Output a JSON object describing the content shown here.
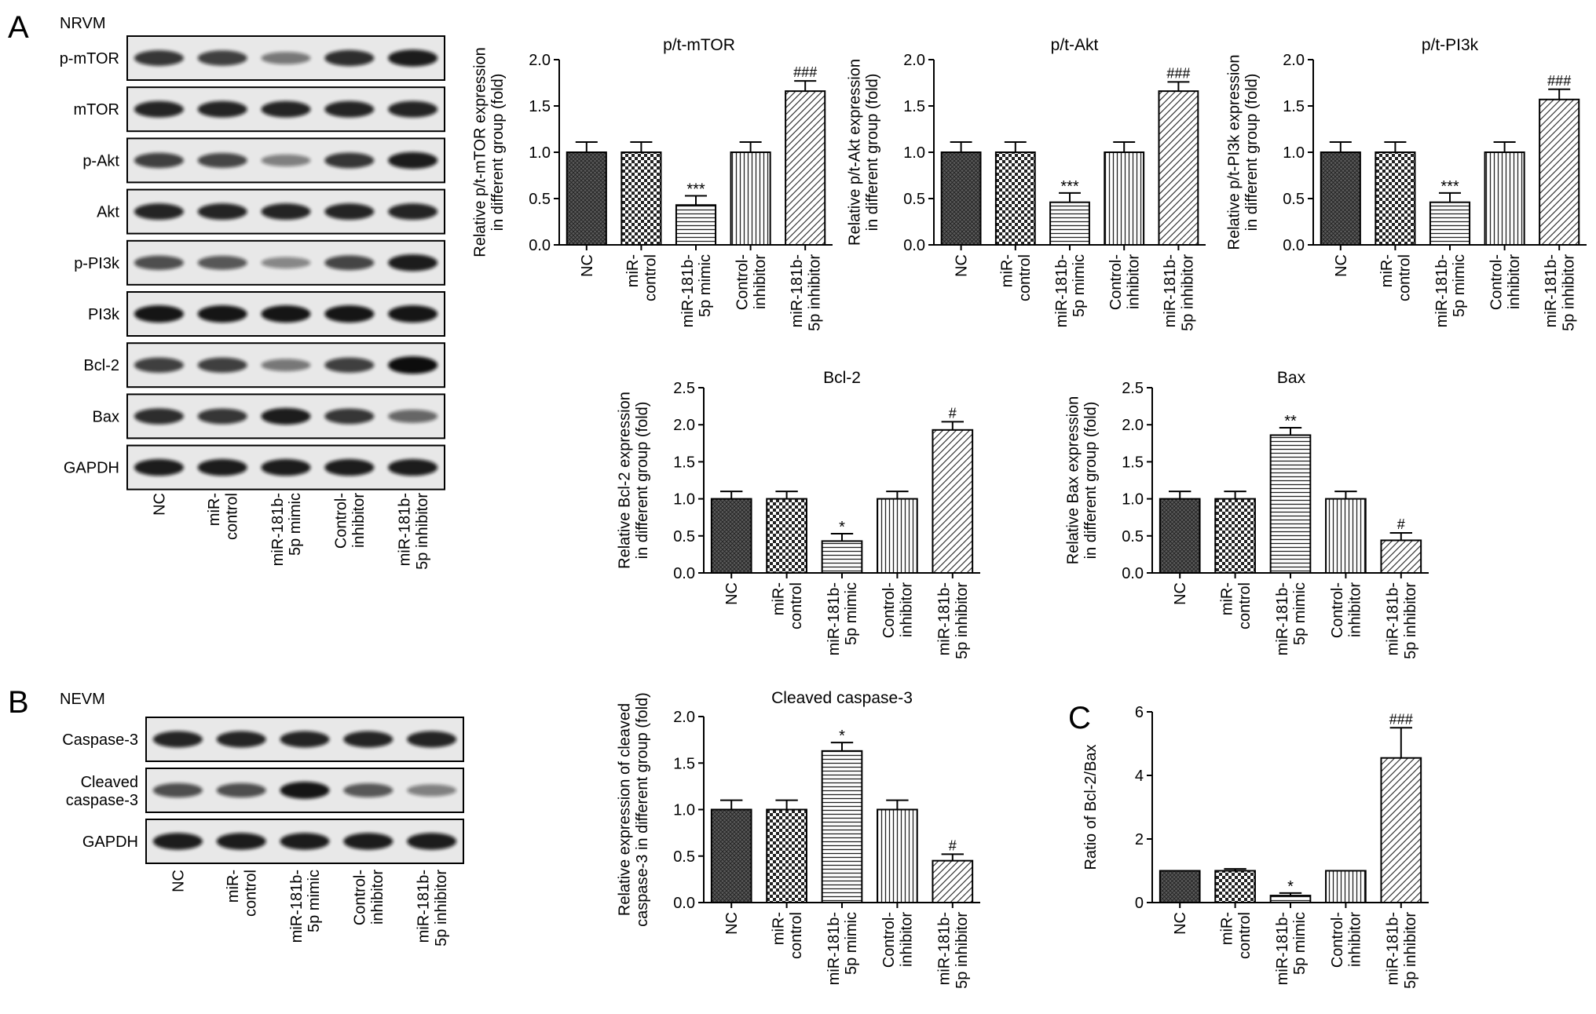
{
  "panels": {
    "A": "A",
    "B": "B",
    "C": "C"
  },
  "blot_a": {
    "cell_label": "NRVM",
    "rows": [
      "p-mTOR",
      "mTOR",
      "p-Akt",
      "Akt",
      "p-PI3k",
      "PI3k",
      "Bcl-2",
      "Bax",
      "GAPDH"
    ],
    "band_intensity": [
      [
        0.75,
        0.7,
        0.35,
        0.8,
        0.9
      ],
      [
        0.85,
        0.85,
        0.85,
        0.85,
        0.85
      ],
      [
        0.7,
        0.65,
        0.3,
        0.75,
        0.9
      ],
      [
        0.85,
        0.85,
        0.85,
        0.85,
        0.85
      ],
      [
        0.6,
        0.55,
        0.25,
        0.65,
        0.9
      ],
      [
        0.95,
        0.95,
        0.95,
        0.95,
        0.95
      ],
      [
        0.7,
        0.7,
        0.35,
        0.7,
        1.0
      ],
      [
        0.8,
        0.75,
        0.9,
        0.75,
        0.45
      ],
      [
        0.9,
        0.9,
        0.9,
        0.9,
        0.9
      ]
    ]
  },
  "blot_b": {
    "cell_label": "NEVM",
    "rows": [
      "Caspase-3",
      "Cleaved\ncaspase-3",
      "GAPDH"
    ],
    "band_intensity": [
      [
        0.85,
        0.85,
        0.85,
        0.85,
        0.85
      ],
      [
        0.6,
        0.6,
        0.95,
        0.55,
        0.3
      ],
      [
        0.9,
        0.9,
        0.9,
        0.9,
        0.9
      ]
    ]
  },
  "groups": [
    "NC",
    "miR-\ncontrol",
    "miR-181b-\n5p mimic",
    "Control-\ninhibitor",
    "miR-181b-\n5p inhibitor"
  ],
  "chart_data": [
    {
      "type": "bar",
      "title": "p/t-mTOR",
      "ylabel": "Relative p/t-mTOR expression\nin different group (fold)",
      "categories": [
        "NC",
        "miR-control",
        "miR-181b-5p mimic",
        "Control-inhibitor",
        "miR-181b-5p inhibitor"
      ],
      "values": [
        1.0,
        1.0,
        0.43,
        1.0,
        1.66
      ],
      "errors": [
        0.11,
        0.11,
        0.1,
        0.11,
        0.11
      ],
      "annotations": [
        "",
        "",
        "***",
        "",
        "###"
      ],
      "ylim": [
        0,
        2.0
      ],
      "yticks": [
        "0.0",
        "0.5",
        "1.0",
        "1.5",
        "2.0"
      ]
    },
    {
      "type": "bar",
      "title": "p/t-Akt",
      "ylabel": "Relative p/t-Akt expression\nin different group (fold)",
      "categories": [
        "NC",
        "miR-control",
        "miR-181b-5p mimic",
        "Control-inhibitor",
        "miR-181b-5p inhibitor"
      ],
      "values": [
        1.0,
        1.0,
        0.46,
        1.0,
        1.66
      ],
      "errors": [
        0.11,
        0.11,
        0.1,
        0.11,
        0.1
      ],
      "annotations": [
        "",
        "",
        "***",
        "",
        "###"
      ],
      "ylim": [
        0,
        2.0
      ],
      "yticks": [
        "0.0",
        "0.5",
        "1.0",
        "1.5",
        "2.0"
      ]
    },
    {
      "type": "bar",
      "title": "p/t-PI3k",
      "ylabel": "Relative p/t-PI3k expression\nin different group (fold)",
      "categories": [
        "NC",
        "miR-control",
        "miR-181b-5p mimic",
        "Control-inhibitor",
        "miR-181b-5p inhibitor"
      ],
      "values": [
        1.0,
        1.0,
        0.46,
        1.0,
        1.57
      ],
      "errors": [
        0.11,
        0.11,
        0.1,
        0.11,
        0.11
      ],
      "annotations": [
        "",
        "",
        "***",
        "",
        "###"
      ],
      "ylim": [
        0,
        2.0
      ],
      "yticks": [
        "0.0",
        "0.5",
        "1.0",
        "1.5",
        "2.0"
      ]
    },
    {
      "type": "bar",
      "title": "Bcl-2",
      "ylabel": "Relative Bcl-2 expression\nin different group (fold)",
      "categories": [
        "NC",
        "miR-control",
        "miR-181b-5p mimic",
        "Control-inhibitor",
        "miR-181b-5p inhibitor"
      ],
      "values": [
        1.0,
        1.0,
        0.43,
        1.0,
        1.93
      ],
      "errors": [
        0.1,
        0.1,
        0.1,
        0.1,
        0.11
      ],
      "annotations": [
        "",
        "",
        "*",
        "",
        "#"
      ],
      "ylim": [
        0,
        2.5
      ],
      "yticks": [
        "0.0",
        "0.5",
        "1.0",
        "1.5",
        "2.0",
        "2.5"
      ]
    },
    {
      "type": "bar",
      "title": "Bax",
      "ylabel": "Relative Bax expression\nin different group (fold)",
      "categories": [
        "NC",
        "miR-control",
        "miR-181b-5p mimic",
        "Control-inhibitor",
        "miR-181b-5p inhibitor"
      ],
      "values": [
        1.0,
        1.0,
        1.86,
        1.0,
        0.44
      ],
      "errors": [
        0.1,
        0.1,
        0.1,
        0.1,
        0.1
      ],
      "annotations": [
        "",
        "",
        "**",
        "",
        "#"
      ],
      "ylim": [
        0,
        2.5
      ],
      "yticks": [
        "0.0",
        "0.5",
        "1.0",
        "1.5",
        "2.0",
        "2.5"
      ]
    },
    {
      "type": "bar",
      "title": "Cleaved caspase-3",
      "ylabel": "Relative expression of cleaved\ncaspase-3 in different group (fold)",
      "categories": [
        "NC",
        "miR-control",
        "miR-181b-5p mimic",
        "Control-inhibitor",
        "miR-181b-5p inhibitor"
      ],
      "values": [
        1.0,
        1.0,
        1.63,
        1.0,
        0.45
      ],
      "errors": [
        0.1,
        0.1,
        0.09,
        0.1,
        0.07
      ],
      "annotations": [
        "",
        "",
        "*",
        "",
        "#"
      ],
      "ylim": [
        0,
        2.0
      ],
      "yticks": [
        "0.0",
        "0.5",
        "1.0",
        "1.5",
        "2.0"
      ]
    },
    {
      "type": "bar",
      "title": "",
      "ylabel": "Ratio of Bcl-2/Bax",
      "categories": [
        "NC",
        "miR-control",
        "miR-181b-5p mimic",
        "Control-inhibitor",
        "miR-181b-5p inhibitor"
      ],
      "values": [
        1.0,
        1.0,
        0.22,
        1.0,
        4.55
      ],
      "errors": [
        0.0,
        0.06,
        0.08,
        0.0,
        0.95
      ],
      "annotations": [
        "",
        "",
        "*",
        "",
        "###"
      ],
      "ylim": [
        0,
        6
      ],
      "yticks": [
        "0",
        "2",
        "4",
        "6"
      ]
    }
  ],
  "colors": {
    "bar_fill_1": "#555555",
    "stroke": "#000000",
    "band": "#111111",
    "blot_bg": "#e8e8e8"
  }
}
